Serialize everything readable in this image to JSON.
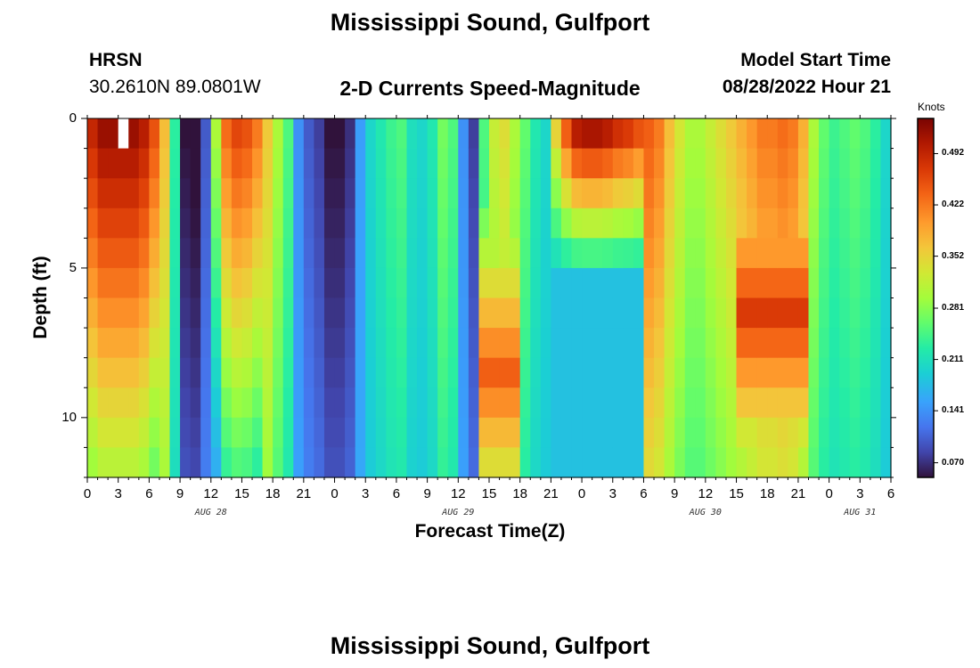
{
  "header": {
    "title": "Mississippi Sound, Gulfport",
    "station_id": "HRSN",
    "coordinates": "30.2610N  89.0801W",
    "subtitle": "2-D Currents Speed-Magnitude",
    "model_start_label": "Model Start Time",
    "model_start_value": "08/28/2022 Hour 21"
  },
  "footer": {
    "title": "Mississippi Sound, Gulfport"
  },
  "chart_data": {
    "type": "heatmap",
    "title": "2-D Currents Speed-Magnitude",
    "xlabel": "Forecast Time(Z)",
    "ylabel": "Depth (ft)",
    "x_range_hours": [
      0,
      78
    ],
    "x_time_step_hours": 1,
    "y_range_ft": [
      0,
      12
    ],
    "y_levels": 12,
    "x_tick_labels": [
      "0",
      "3",
      "6",
      "9",
      "12",
      "15",
      "18",
      "21",
      "0",
      "3",
      "6",
      "9",
      "12",
      "15",
      "18",
      "21",
      "0",
      "3",
      "6",
      "9",
      "12",
      "15",
      "18",
      "21",
      "0",
      "3",
      "6"
    ],
    "date_labels": [
      {
        "text": "AUG 28",
        "hour": 12
      },
      {
        "text": "AUG 29",
        "hour": 36
      },
      {
        "text": "AUG 30",
        "hour": 60
      },
      {
        "text": "AUG 31",
        "hour": 75
      }
    ],
    "y_tick_labels": [
      {
        "value": 0,
        "text": "0"
      },
      {
        "value": 5,
        "text": "5"
      },
      {
        "value": 10,
        "text": "10"
      }
    ],
    "colorbar": {
      "units": "Knots",
      "min": 0.05,
      "max": 0.54,
      "ticks": [
        "0.070",
        "0.141",
        "0.211",
        "0.281",
        "0.352",
        "0.422",
        "0.492"
      ],
      "tick_values": [
        0.07,
        0.141,
        0.211,
        0.281,
        0.352,
        0.422,
        0.492
      ]
    },
    "surface_profile_knots": [
      0.49,
      0.52,
      0.52,
      0.52,
      0.52,
      0.5,
      0.45,
      0.37,
      0.23,
      0.05,
      0.04,
      0.1,
      0.3,
      0.43,
      0.46,
      0.45,
      0.42,
      0.36,
      0.3,
      0.25,
      0.14,
      0.1,
      0.08,
      0.05,
      0.05,
      0.07,
      0.15,
      0.2,
      0.22,
      0.24,
      0.25,
      0.21,
      0.2,
      0.22,
      0.27,
      0.25,
      0.14,
      0.08,
      0.25,
      0.32,
      0.34,
      0.3,
      0.26,
      0.22,
      0.2,
      0.35,
      0.44,
      0.5,
      0.51,
      0.51,
      0.5,
      0.48,
      0.47,
      0.45,
      0.44,
      0.42,
      0.37,
      0.33,
      0.3,
      0.3,
      0.32,
      0.34,
      0.36,
      0.38,
      0.4,
      0.42,
      0.42,
      0.43,
      0.42,
      0.38,
      0.3,
      0.26,
      0.24,
      0.25,
      0.26,
      0.25,
      0.23,
      0.2
    ],
    "depth_adjustments": [
      {
        "start_hour": 0,
        "end_hour": 6,
        "bottom_multiplier": 0.6
      },
      {
        "start_hour": 12,
        "end_hour": 16,
        "bottom_multiplier": 0.55
      },
      {
        "start_hour": 38,
        "end_hour": 41,
        "depth_peak_ft": 8,
        "peak_knots": 0.44
      },
      {
        "start_hour": 45,
        "end_hour": 53,
        "surface_only": true,
        "bottom_knots": 0.18
      },
      {
        "start_hour": 63,
        "end_hour": 69,
        "depth_peak_ft": 6,
        "peak_knots": 0.47
      }
    ],
    "missing_cells": [
      {
        "hour": 3,
        "depth_ft": 0
      }
    ]
  }
}
